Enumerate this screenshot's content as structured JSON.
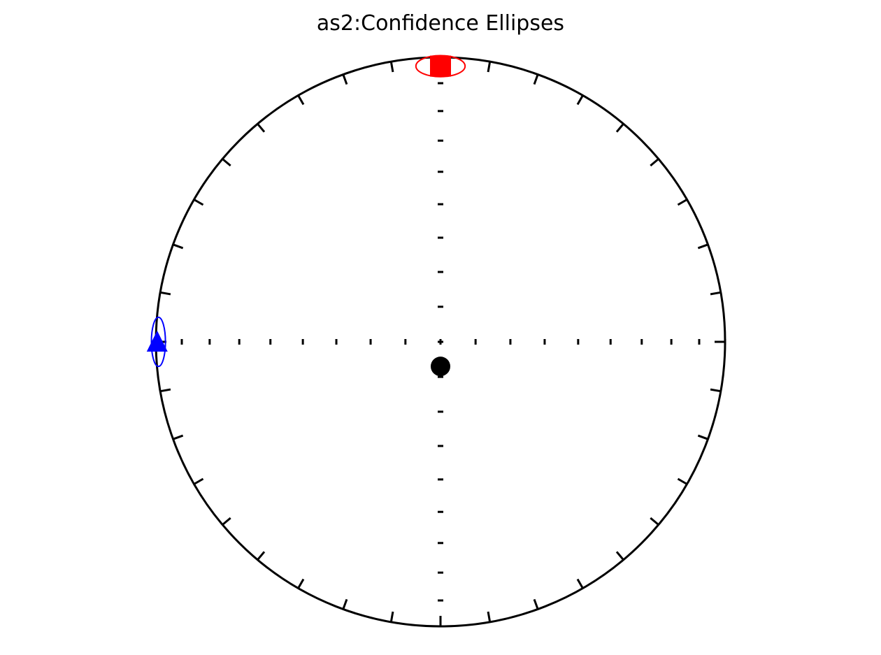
{
  "chart_data": {
    "type": "scatter",
    "projection": "equal-area stereonet",
    "title": "as2:Confidence Ellipses",
    "grid": false,
    "legend": "none",
    "tick_interval_deg": 10,
    "points": [
      {
        "symbol": "square",
        "color": "#ff0000",
        "declination": 0,
        "inclination": 3.5
      },
      {
        "symbol": "triangle",
        "color": "#0000ff",
        "declination": 270,
        "inclination": 0.5
      },
      {
        "symbol": "circle",
        "color": "#000000",
        "declination": 180,
        "inclination": 83
      }
    ],
    "ellipses": [
      {
        "color": "#ff0000",
        "declination": 0,
        "inclination": 3.5,
        "major_deg": 7,
        "minor_deg": 3
      },
      {
        "color": "#0000ff",
        "declination": 270,
        "inclination": 1,
        "major_deg": 7,
        "minor_deg": 2
      },
      {
        "color": "#000000",
        "declination": 180,
        "inclination": 83,
        "major_deg": 2,
        "minor_deg": 2
      }
    ]
  }
}
